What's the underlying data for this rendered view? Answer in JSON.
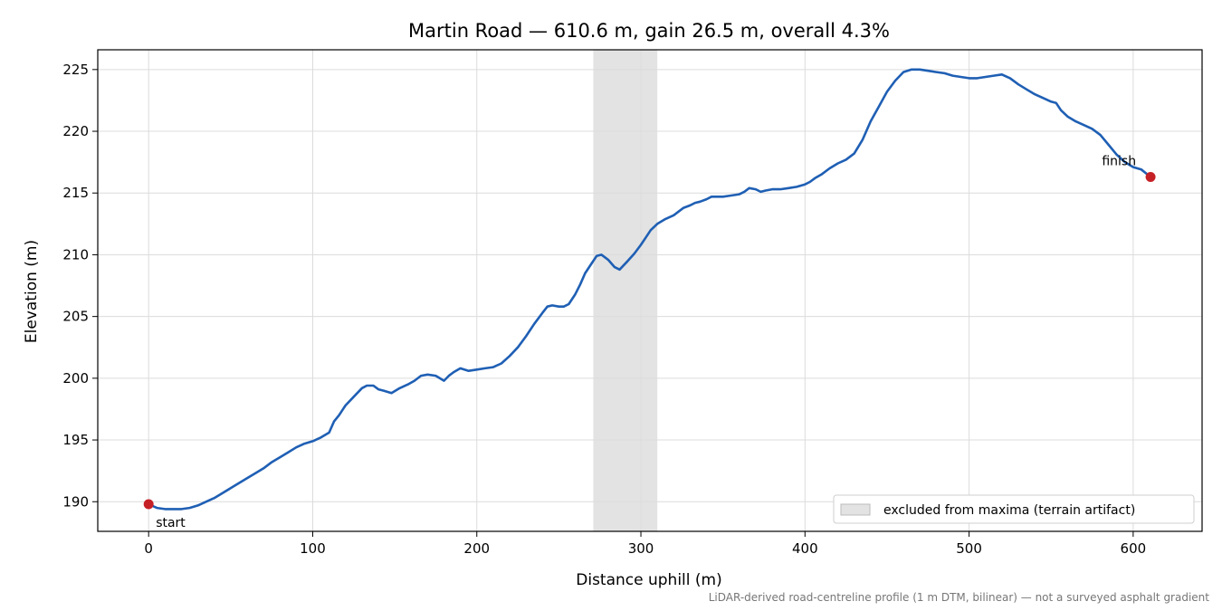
{
  "chart_data": {
    "type": "line",
    "title": "Martin Road — 610.6 m, gain 26.5 m, overall 4.3%",
    "xlabel": "Distance uphill (m)",
    "ylabel": "Elevation (m)",
    "xlim": [
      -31,
      642
    ],
    "ylim": [
      187.6,
      226.6
    ],
    "xticks": [
      0,
      100,
      200,
      300,
      400,
      500,
      600
    ],
    "yticks": [
      190,
      195,
      200,
      205,
      210,
      215,
      220,
      225
    ],
    "grid": true,
    "legend_position": "lower-right",
    "line_color": "#1f5fb4",
    "marker_color": "#c62027",
    "band_color": "#cccccc",
    "excluded_band": {
      "x0": 271,
      "x1": 310,
      "label": "excluded from maxima (terrain artifact)"
    },
    "markers": [
      {
        "label": "start",
        "x": 0,
        "y": 189.8
      },
      {
        "label": "finish",
        "x": 610.6,
        "y": 216.3
      }
    ],
    "series": [
      {
        "x": [
          0,
          5,
          10,
          15,
          20,
          25,
          30,
          35,
          40,
          45,
          50,
          55,
          60,
          65,
          70,
          75,
          80,
          85,
          90,
          95,
          100,
          105,
          110,
          113,
          116,
          120,
          125,
          130,
          133,
          137,
          140,
          143,
          148,
          153,
          158,
          162,
          166,
          170,
          175,
          180,
          183,
          186,
          190,
          195,
          200,
          205,
          210,
          215,
          220,
          225,
          230,
          235,
          240,
          243,
          246,
          250,
          253,
          256,
          260,
          263,
          266,
          270,
          273,
          276,
          280,
          284,
          287,
          292,
          296,
          300,
          303,
          306,
          310,
          315,
          320,
          323,
          326,
          330,
          333,
          336,
          340,
          343,
          346,
          350,
          355,
          360,
          363,
          366,
          370,
          373,
          376,
          380,
          385,
          390,
          395,
          400,
          403,
          406,
          410,
          415,
          420,
          425,
          430,
          435,
          440,
          445,
          450,
          455,
          460,
          465,
          470,
          475,
          480,
          485,
          490,
          495,
          500,
          505,
          510,
          515,
          520,
          525,
          530,
          535,
          540,
          545,
          550,
          553,
          556,
          560,
          565,
          570,
          575,
          580,
          585,
          590,
          595,
          600,
          605,
          610.6
        ],
        "y": [
          189.8,
          189.5,
          189.4,
          189.4,
          189.4,
          189.5,
          189.7,
          190.0,
          190.3,
          190.7,
          191.1,
          191.5,
          191.9,
          192.3,
          192.7,
          193.2,
          193.6,
          194.0,
          194.4,
          194.7,
          194.9,
          195.2,
          195.6,
          196.5,
          197.0,
          197.8,
          198.5,
          199.2,
          199.4,
          199.4,
          199.1,
          199.0,
          198.8,
          199.2,
          199.5,
          199.8,
          200.2,
          200.3,
          200.2,
          199.8,
          200.2,
          200.5,
          200.8,
          200.6,
          200.7,
          200.8,
          200.9,
          201.2,
          201.8,
          202.5,
          203.4,
          204.4,
          205.3,
          205.8,
          205.9,
          205.8,
          205.8,
          206.0,
          206.8,
          207.6,
          208.5,
          209.3,
          209.9,
          210.0,
          209.6,
          209.0,
          208.8,
          209.5,
          210.1,
          210.8,
          211.4,
          212.0,
          212.5,
          212.9,
          213.2,
          213.5,
          213.8,
          214.0,
          214.2,
          214.3,
          214.5,
          214.7,
          214.7,
          214.7,
          214.8,
          214.9,
          215.1,
          215.4,
          215.3,
          215.1,
          215.2,
          215.3,
          215.3,
          215.4,
          215.5,
          215.7,
          215.9,
          216.2,
          216.5,
          217.0,
          217.4,
          217.7,
          218.2,
          219.3,
          220.8,
          222.0,
          223.2,
          224.1,
          224.8,
          225.0,
          225.0,
          224.9,
          224.8,
          224.7,
          224.5,
          224.4,
          224.3,
          224.3,
          224.4,
          224.5,
          224.6,
          224.3,
          223.8,
          223.4,
          223.0,
          222.7,
          222.4,
          222.3,
          221.7,
          221.2,
          220.8,
          220.5,
          220.2,
          219.7,
          218.9,
          218.1,
          217.5,
          217.1,
          216.9,
          216.3
        ]
      }
    ]
  },
  "footnote": "LiDAR-derived road-centreline profile (1 m DTM, bilinear) — not a surveyed asphalt gradient"
}
